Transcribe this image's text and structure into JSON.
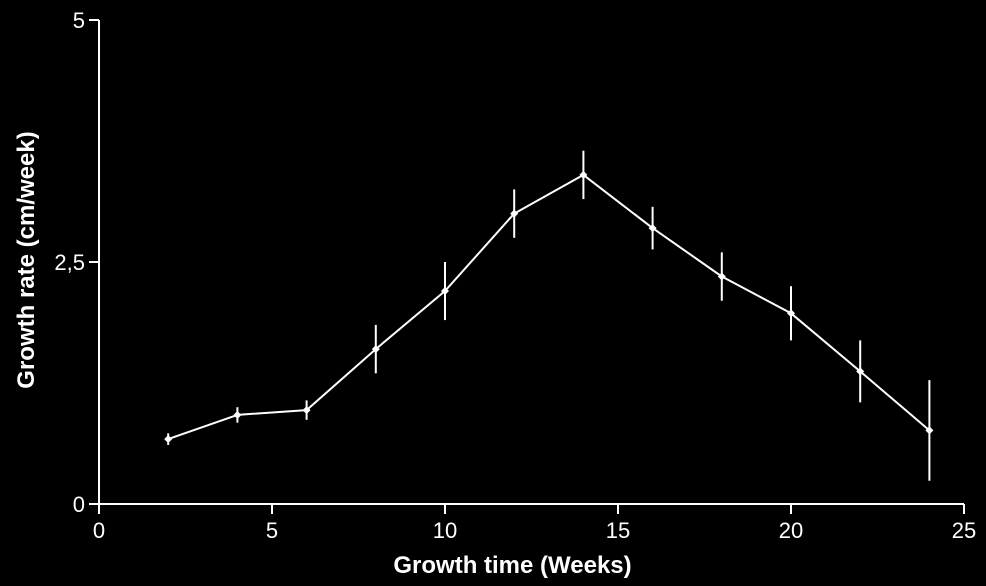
{
  "chart_data": {
    "type": "line",
    "title": "",
    "xlabel": "Growth time (Weeks)",
    "ylabel": "Growth rate (cm/week)",
    "xlim": [
      0,
      25
    ],
    "ylim": [
      0,
      5
    ],
    "xticks": [
      0,
      5,
      10,
      15,
      20,
      25
    ],
    "xtick_labels": [
      "0",
      "5",
      "10",
      "15",
      "20",
      "25"
    ],
    "yticks": [
      0,
      2.5,
      5
    ],
    "ytick_labels": [
      "0",
      "2,5",
      "5"
    ],
    "grid": false,
    "legend": "none",
    "series": [
      {
        "x": [
          2,
          4,
          6,
          8,
          10,
          12,
          14,
          16,
          18,
          20,
          22,
          24
        ],
        "y": [
          0.67,
          0.92,
          0.97,
          1.6,
          2.2,
          3.0,
          3.4,
          2.85,
          2.35,
          1.97,
          1.37,
          0.76
        ],
        "error": [
          0.06,
          0.08,
          0.1,
          0.25,
          0.3,
          0.25,
          0.25,
          0.22,
          0.25,
          0.28,
          0.32,
          0.52
        ]
      }
    ]
  },
  "colors": {
    "background": "#000000",
    "foreground": "#ffffff"
  }
}
